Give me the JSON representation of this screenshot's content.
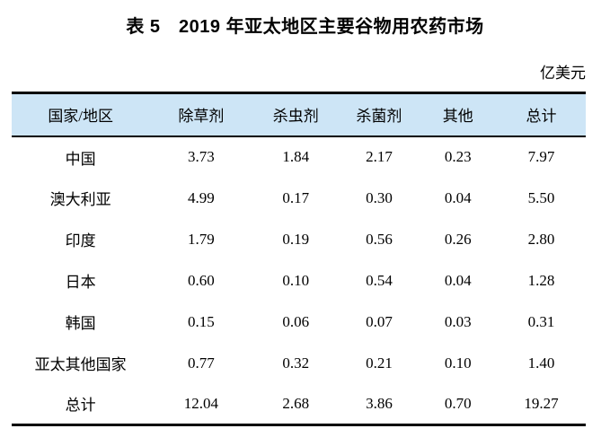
{
  "caption": "表 5　2019 年亚太地区主要谷物用农药市场",
  "unit_label": "亿美元",
  "colors": {
    "header_bg": "#cde5f6",
    "border": "#000000",
    "text": "#000000",
    "page_bg": "#ffffff"
  },
  "table": {
    "columns": [
      "国家/地区",
      "除草剂",
      "杀虫剂",
      "杀菌剂",
      "其他",
      "总计"
    ],
    "rows": [
      {
        "name": "中国",
        "values": [
          "3.73",
          "1.84",
          "2.17",
          "0.23",
          "7.97"
        ]
      },
      {
        "name": "澳大利亚",
        "values": [
          "4.99",
          "0.17",
          "0.30",
          "0.04",
          "5.50"
        ]
      },
      {
        "name": "印度",
        "values": [
          "1.79",
          "0.19",
          "0.56",
          "0.26",
          "2.80"
        ]
      },
      {
        "name": "日本",
        "values": [
          "0.60",
          "0.10",
          "0.54",
          "0.04",
          "1.28"
        ]
      },
      {
        "name": "韩国",
        "values": [
          "0.15",
          "0.06",
          "0.07",
          "0.03",
          "0.31"
        ]
      },
      {
        "name": "亚太其他国家",
        "values": [
          "0.77",
          "0.32",
          "0.21",
          "0.10",
          "1.40"
        ]
      },
      {
        "name": "总计",
        "values": [
          "12.04",
          "2.68",
          "3.86",
          "0.70",
          "19.27"
        ]
      }
    ]
  },
  "chart_data": {
    "type": "table",
    "title": "表 5　2019 年亚太地区主要谷物用农药市场",
    "unit": "亿美元",
    "columns": [
      "国家/地区",
      "除草剂",
      "杀虫剂",
      "杀菌剂",
      "其他",
      "总计"
    ],
    "rows": [
      [
        "中国",
        3.73,
        1.84,
        2.17,
        0.23,
        7.97
      ],
      [
        "澳大利亚",
        4.99,
        0.17,
        0.3,
        0.04,
        5.5
      ],
      [
        "印度",
        1.79,
        0.19,
        0.56,
        0.26,
        2.8
      ],
      [
        "日本",
        0.6,
        0.1,
        0.54,
        0.04,
        1.28
      ],
      [
        "韩国",
        0.15,
        0.06,
        0.07,
        0.03,
        0.31
      ],
      [
        "亚太其他国家",
        0.77,
        0.32,
        0.21,
        0.1,
        1.4
      ],
      [
        "总计",
        12.04,
        2.68,
        3.86,
        0.7,
        19.27
      ]
    ]
  }
}
